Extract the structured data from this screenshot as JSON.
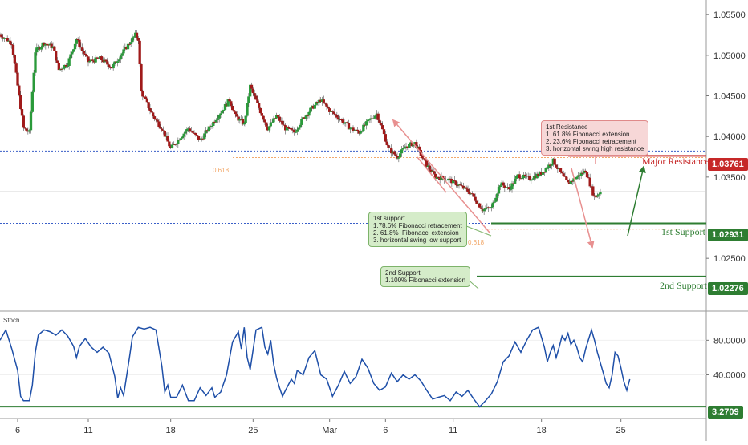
{
  "chart_data": {
    "type": "candlestick",
    "price_axis": {
      "ticks": [
        "1.05500",
        "1.05000",
        "1.04500",
        "1.04000",
        "1.03500",
        "1.02500"
      ],
      "tick_values": [
        1.055,
        1.05,
        1.045,
        1.04,
        1.035,
        1.025
      ],
      "range": [
        1.0188,
        1.0563
      ]
    },
    "x_axis": {
      "ticks": [
        "6",
        "11",
        "18",
        "25",
        "Mar",
        "6",
        "11",
        "18",
        "25"
      ],
      "tick_index": [
        6,
        30,
        58,
        86,
        112,
        131,
        154,
        184,
        211
      ],
      "range": [
        0,
        240
      ]
    },
    "price_path": [
      [
        0,
        1.0525
      ],
      [
        4,
        1.0515
      ],
      [
        8,
        1.041
      ],
      [
        10,
        1.0405
      ],
      [
        12,
        1.0505
      ],
      [
        15,
        1.0515
      ],
      [
        18,
        1.051
      ],
      [
        20,
        1.0482
      ],
      [
        23,
        1.049
      ],
      [
        26,
        1.052
      ],
      [
        30,
        1.0492
      ],
      [
        34,
        1.0496
      ],
      [
        38,
        1.0485
      ],
      [
        42,
        1.0505
      ],
      [
        46,
        1.0525
      ],
      [
        47,
        1.052
      ],
      [
        48,
        1.0455
      ],
      [
        52,
        1.0425
      ],
      [
        55,
        1.041
      ],
      [
        58,
        1.0385
      ],
      [
        61,
        1.0398
      ],
      [
        64,
        1.041
      ],
      [
        68,
        1.0395
      ],
      [
        72,
        1.0415
      ],
      [
        75,
        1.043
      ],
      [
        78,
        1.0445
      ],
      [
        80,
        1.0425
      ],
      [
        83,
        1.0415
      ],
      [
        85,
        1.0462
      ],
      [
        88,
        1.0435
      ],
      [
        91,
        1.041
      ],
      [
        94,
        1.0425
      ],
      [
        97,
        1.041
      ],
      [
        100,
        1.0405
      ],
      [
        103,
        1.0422
      ],
      [
        106,
        1.0435
      ],
      [
        109,
        1.0445
      ],
      [
        112,
        1.0432
      ],
      [
        116,
        1.042
      ],
      [
        119,
        1.041
      ],
      [
        122,
        1.0405
      ],
      [
        125,
        1.0418
      ],
      [
        128,
        1.0428
      ],
      [
        130,
        1.0408
      ],
      [
        132,
        1.0385
      ],
      [
        135,
        1.0375
      ],
      [
        138,
        1.0388
      ],
      [
        141,
        1.0392
      ],
      [
        144,
        1.037
      ],
      [
        148,
        1.035
      ],
      [
        152,
        1.0348
      ],
      [
        156,
        1.034
      ],
      [
        160,
        1.033
      ],
      [
        164,
        1.031
      ],
      [
        167,
        1.0312
      ],
      [
        170,
        1.0342
      ],
      [
        173,
        1.0335
      ],
      [
        176,
        1.0352
      ],
      [
        180,
        1.0348
      ],
      [
        184,
        1.0355
      ],
      [
        188,
        1.037
      ],
      [
        190,
        1.0358
      ],
      [
        193,
        1.0342
      ],
      [
        196,
        1.035
      ],
      [
        199,
        1.0358
      ],
      [
        202,
        1.0325
      ],
      [
        204,
        1.0332
      ]
    ],
    "stoch_axis": {
      "ticks": [
        "80.0000",
        "40.0000"
      ],
      "tick_values": [
        80,
        40
      ],
      "range": [
        -5,
        110
      ]
    },
    "stoch_path": [
      [
        0,
        80
      ],
      [
        2,
        92
      ],
      [
        4,
        70
      ],
      [
        6,
        45
      ],
      [
        7,
        15
      ],
      [
        8,
        10
      ],
      [
        10,
        10
      ],
      [
        11,
        28
      ],
      [
        12,
        66
      ],
      [
        13,
        86
      ],
      [
        15,
        92
      ],
      [
        17,
        90
      ],
      [
        19,
        86
      ],
      [
        21,
        92
      ],
      [
        23,
        85
      ],
      [
        25,
        73
      ],
      [
        26,
        60
      ],
      [
        27,
        73
      ],
      [
        29,
        82
      ],
      [
        31,
        72
      ],
      [
        33,
        66
      ],
      [
        35,
        72
      ],
      [
        37,
        65
      ],
      [
        39,
        38
      ],
      [
        40,
        13
      ],
      [
        41,
        25
      ],
      [
        42,
        16
      ],
      [
        44,
        60
      ],
      [
        45,
        84
      ],
      [
        47,
        95
      ],
      [
        49,
        93
      ],
      [
        51,
        95
      ],
      [
        53,
        92
      ],
      [
        55,
        50
      ],
      [
        56,
        20
      ],
      [
        57,
        28
      ],
      [
        58,
        14
      ],
      [
        60,
        14
      ],
      [
        62,
        28
      ],
      [
        64,
        10
      ],
      [
        66,
        10
      ],
      [
        68,
        25
      ],
      [
        70,
        16
      ],
      [
        72,
        25
      ],
      [
        73,
        14
      ],
      [
        75,
        20
      ],
      [
        77,
        40
      ],
      [
        79,
        78
      ],
      [
        81,
        90
      ],
      [
        82,
        70
      ],
      [
        83,
        95
      ],
      [
        84,
        60
      ],
      [
        85,
        46
      ],
      [
        87,
        92
      ],
      [
        89,
        95
      ],
      [
        90,
        72
      ],
      [
        91,
        64
      ],
      [
        92,
        80
      ],
      [
        93,
        52
      ],
      [
        94,
        36
      ],
      [
        95,
        25
      ],
      [
        96,
        15
      ],
      [
        97,
        22
      ],
      [
        99,
        35
      ],
      [
        100,
        30
      ],
      [
        101,
        45
      ],
      [
        103,
        40
      ],
      [
        105,
        60
      ],
      [
        107,
        68
      ],
      [
        109,
        40
      ],
      [
        111,
        35
      ],
      [
        113,
        15
      ],
      [
        115,
        28
      ],
      [
        117,
        44
      ],
      [
        119,
        30
      ],
      [
        121,
        38
      ],
      [
        123,
        58
      ],
      [
        125,
        48
      ],
      [
        127,
        30
      ],
      [
        129,
        22
      ],
      [
        131,
        26
      ],
      [
        133,
        42
      ],
      [
        135,
        32
      ],
      [
        137,
        40
      ],
      [
        139,
        35
      ],
      [
        141,
        40
      ],
      [
        143,
        33
      ],
      [
        145,
        22
      ],
      [
        147,
        12
      ],
      [
        149,
        14
      ],
      [
        151,
        16
      ],
      [
        153,
        10
      ],
      [
        155,
        20
      ],
      [
        157,
        15
      ],
      [
        159,
        22
      ],
      [
        161,
        12
      ],
      [
        163,
        3
      ],
      [
        165,
        10
      ],
      [
        167,
        18
      ],
      [
        169,
        32
      ],
      [
        171,
        55
      ],
      [
        173,
        62
      ],
      [
        175,
        78
      ],
      [
        177,
        66
      ],
      [
        179,
        80
      ],
      [
        181,
        92
      ],
      [
        183,
        95
      ],
      [
        185,
        72
      ],
      [
        186,
        55
      ],
      [
        187,
        66
      ],
      [
        188,
        74
      ],
      [
        189,
        60
      ],
      [
        190,
        72
      ],
      [
        191,
        85
      ],
      [
        192,
        80
      ],
      [
        193,
        88
      ],
      [
        194,
        75
      ],
      [
        195,
        80
      ],
      [
        196,
        72
      ],
      [
        197,
        60
      ],
      [
        198,
        55
      ],
      [
        199,
        70
      ],
      [
        201,
        92
      ],
      [
        202,
        80
      ],
      [
        203,
        66
      ],
      [
        205,
        42
      ],
      [
        206,
        30
      ],
      [
        207,
        25
      ],
      [
        208,
        40
      ],
      [
        209,
        66
      ],
      [
        210,
        62
      ],
      [
        211,
        48
      ],
      [
        212,
        32
      ],
      [
        213,
        22
      ],
      [
        214,
        35
      ]
    ],
    "levels": {
      "major_resistance": {
        "label": "Major Resistance",
        "value": "1.03761"
      },
      "first_support": {
        "label": "1st Support",
        "value": "1.02931"
      },
      "second_support": {
        "label": "2nd Support",
        "value": "1.02276"
      }
    },
    "fib_label": "0.618",
    "stoch": {
      "label": "Stoch",
      "current_value": "3.2709"
    },
    "annotations": {
      "resistance_box": "1st Resistance\n1. 61.8% Fibonacci extension\n2. 23.6% Fibonacci retracement\n3. horizontal swing high resistance",
      "support_box": "1st support\n1.78.6% Fibonacci retracement\n2. 61.8%  Fibonacci extension\n3. horizontal swing low support",
      "support2_box": "2nd Support\n1.100% Fibonacci extension"
    },
    "colors": {
      "up_candle": "#2a9a3a",
      "down_candle": "#a01a1a",
      "stoch_line": "#1e4fa8",
      "resistance": "#c62828",
      "support": "#2e7d32",
      "dotted_blue": "#3a5fc8",
      "fib_orange": "#f2a86a",
      "pink_arrow": "#e89090"
    }
  }
}
